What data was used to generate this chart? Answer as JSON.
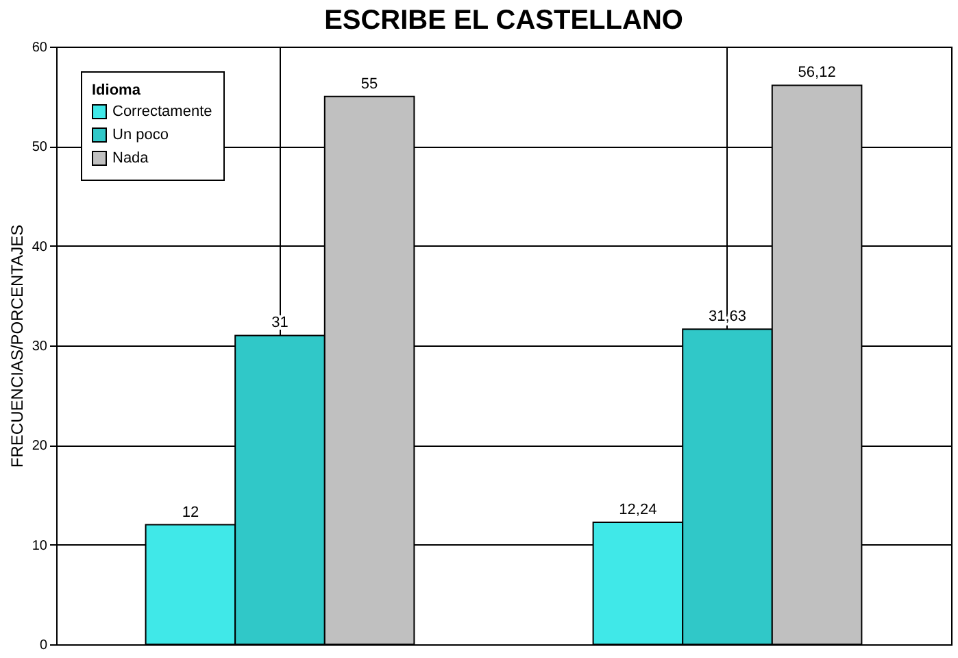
{
  "chart_data": {
    "type": "bar",
    "title": "ESCRIBE EL CASTELLANO",
    "ylabel": "FRECUENCIAS/PORCENTAJES",
    "legend_title": "Idioma",
    "categories": [
      null,
      null
    ],
    "series": [
      {
        "name": "Correctamente",
        "color": "#40e8e8",
        "values": [
          12,
          12.24
        ],
        "value_labels": [
          "12",
          "12,24"
        ]
      },
      {
        "name": "Un poco",
        "color": "#30c8c8",
        "values": [
          31,
          31.63
        ],
        "value_labels": [
          "31",
          "31,63"
        ]
      },
      {
        "name": "Nada",
        "color": "#c0c0c0",
        "values": [
          55,
          56.12
        ],
        "value_labels": [
          "55",
          "56,12"
        ]
      }
    ],
    "ylim": [
      0,
      60
    ],
    "yticks": [
      0,
      10,
      20,
      30,
      40,
      50,
      60
    ],
    "grid": true,
    "legend": "top left",
    "tick_labels": "y"
  }
}
